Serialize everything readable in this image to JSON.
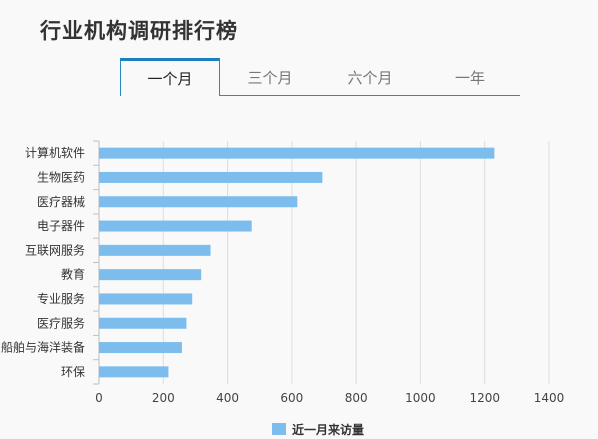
{
  "title": "行业机构调研排行榜",
  "tabs": [
    {
      "label": "一个月",
      "active": true
    },
    {
      "label": "三个月",
      "active": false
    },
    {
      "label": "六个月",
      "active": false
    },
    {
      "label": "一年",
      "active": false
    }
  ],
  "colors": {
    "bar": "#7cbdee",
    "grid": "#dddddd",
    "axis": "#c0c0c0",
    "tab_accent": "#1d7ec0"
  },
  "chart_data": {
    "type": "bar",
    "orientation": "horizontal",
    "categories": [
      "计算机软件",
      "生物医药",
      "医疗器械",
      "电子器件",
      "互联网服务",
      "教育",
      "专业服务",
      "医疗服务",
      "船舶与海洋装备",
      "环保"
    ],
    "series": [
      {
        "name": "近一月来访量",
        "values": [
          1230,
          695,
          617,
          475,
          347,
          318,
          290,
          272,
          258,
          216
        ]
      }
    ],
    "xticks": [
      0,
      200,
      400,
      600,
      800,
      1000,
      1200,
      1400
    ],
    "xlim": [
      0,
      1400
    ],
    "grid": true,
    "legend": "bottom-center"
  }
}
